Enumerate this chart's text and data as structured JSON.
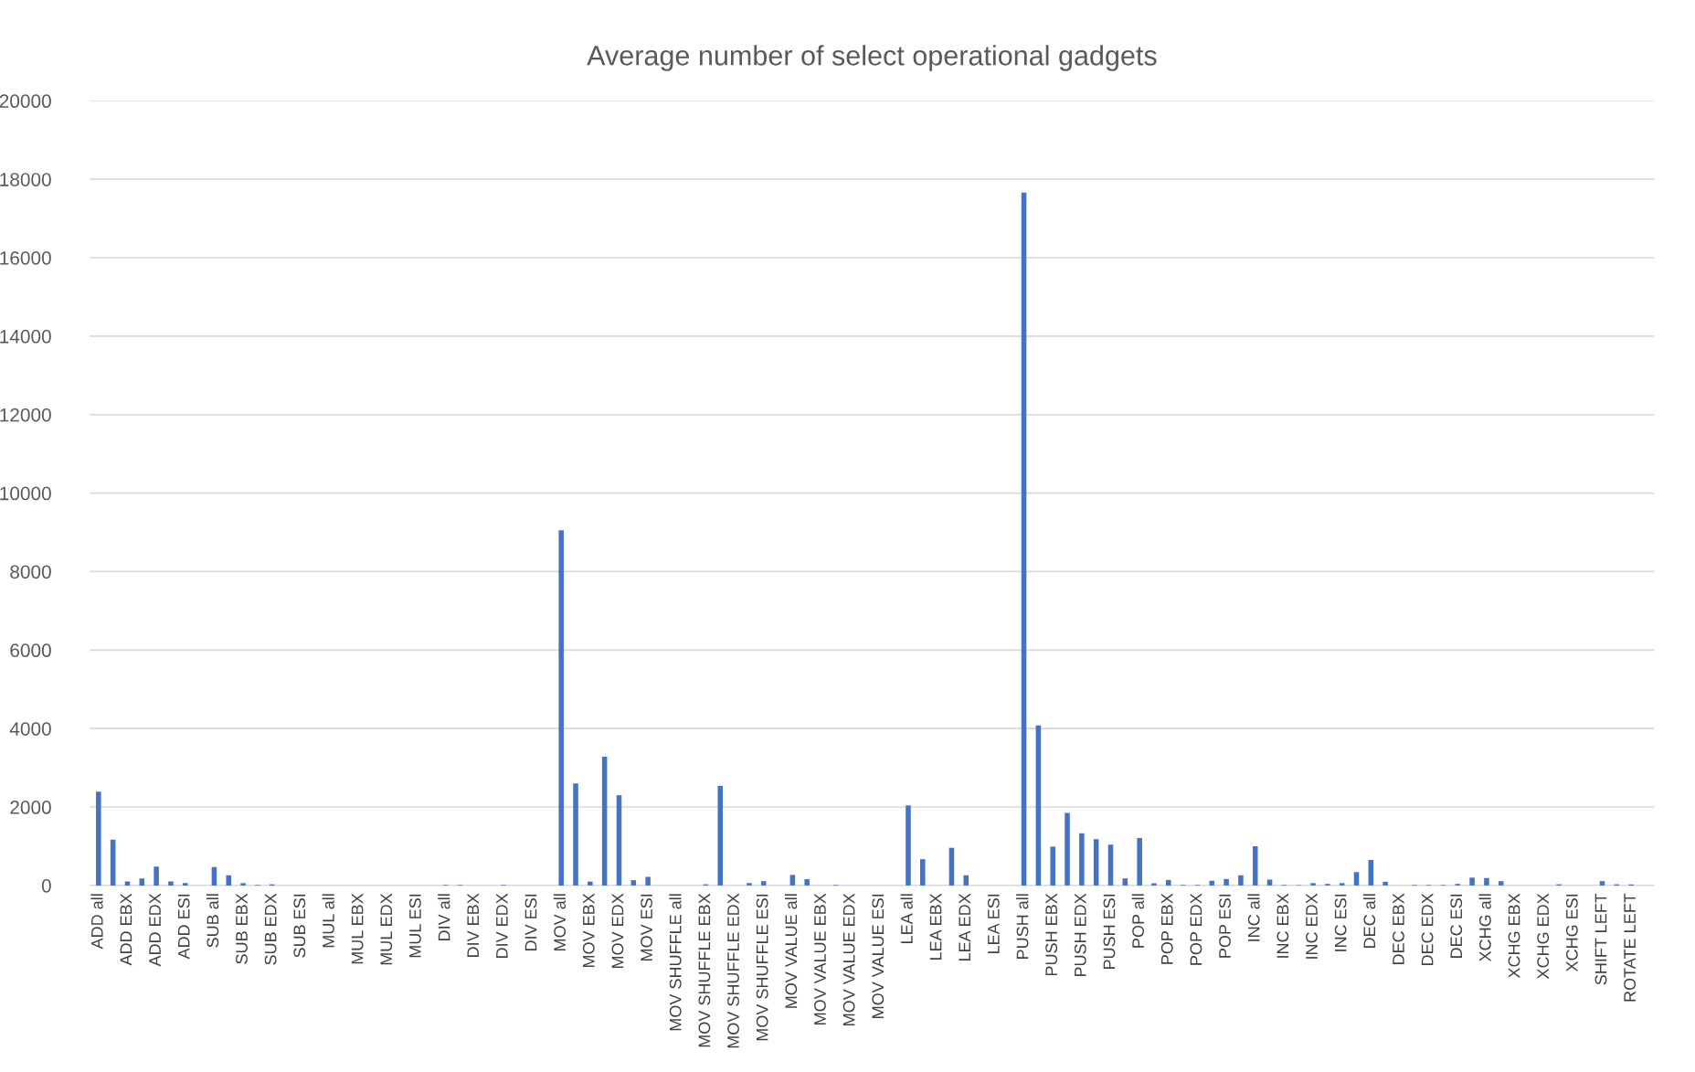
{
  "chart_data": {
    "type": "bar",
    "title": "Average number of select operational gadgets",
    "categories": [
      "ADD all",
      null,
      "ADD EBX",
      null,
      "ADD EDX",
      null,
      "ADD ESI",
      null,
      "SUB all",
      null,
      "SUB EBX",
      null,
      "SUB EDX",
      null,
      "SUB ESI",
      null,
      "MUL all",
      null,
      "MUL EBX",
      null,
      "MUL EDX",
      null,
      "MUL ESI",
      null,
      "DIV all",
      null,
      "DIV EBX",
      null,
      "DIV EDX",
      null,
      "DIV ESI",
      null,
      "MOV all",
      null,
      "MOV EBX",
      null,
      "MOV EDX",
      null,
      "MOV ESI",
      null,
      "MOV SHUFFLE all",
      null,
      "MOV SHUFFLE EBX",
      null,
      "MOV SHUFFLE EDX",
      null,
      "MOV SHUFFLE ESI",
      null,
      "MOV VALUE all",
      null,
      "MOV VALUE EBX",
      null,
      "MOV VALUE EDX",
      null,
      "MOV VALUE ESI",
      null,
      "LEA all",
      null,
      "LEA EBX",
      null,
      "LEA EDX",
      null,
      "LEA ESI",
      null,
      "PUSH all",
      null,
      "PUSH EBX",
      null,
      "PUSH EDX",
      null,
      "PUSH ESI",
      null,
      "POP all",
      null,
      "POP EBX",
      null,
      "POP EDX",
      null,
      "POP ESI",
      null,
      "INC all",
      null,
      "INC EBX",
      null,
      "INC EDX",
      null,
      "INC ESI",
      null,
      "DEC all",
      null,
      "DEC EBX",
      null,
      "DEC EDX",
      null,
      "DEC ESI",
      null,
      "XCHG all",
      null,
      "XCHG EBX",
      null,
      "XCHG EDX",
      null,
      "XCHG ESI",
      null,
      "SHIFT LEFT",
      null,
      "ROTATE LEFT",
      null
    ],
    "values": [
      2390,
      1170,
      100,
      180,
      480,
      100,
      60,
      0,
      470,
      260,
      60,
      15,
      30,
      0,
      0,
      0,
      0,
      0,
      0,
      0,
      0,
      0,
      0,
      0,
      15,
      15,
      0,
      0,
      15,
      0,
      0,
      0,
      9050,
      2600,
      100,
      3280,
      2300,
      135,
      220,
      0,
      0,
      0,
      30,
      2540,
      0,
      60,
      110,
      0,
      270,
      160,
      0,
      15,
      0,
      0,
      0,
      0,
      2040,
      670,
      0,
      960,
      260,
      0,
      0,
      0,
      17660,
      4080,
      990,
      1850,
      1330,
      1180,
      1040,
      180,
      1210,
      55,
      140,
      15,
      15,
      120,
      165,
      260,
      1000,
      150,
      15,
      10,
      60,
      40,
      60,
      340,
      650,
      95,
      0,
      15,
      15,
      15,
      40,
      200,
      190,
      110,
      0,
      0,
      0,
      30,
      0,
      0,
      110,
      30,
      25,
      0
    ],
    "color": "#4472c4",
    "ylim": [
      0,
      20000
    ],
    "yticks": [
      0,
      2000,
      4000,
      6000,
      8000,
      10000,
      12000,
      14000,
      16000,
      18000,
      20000
    ],
    "grid": "y"
  }
}
